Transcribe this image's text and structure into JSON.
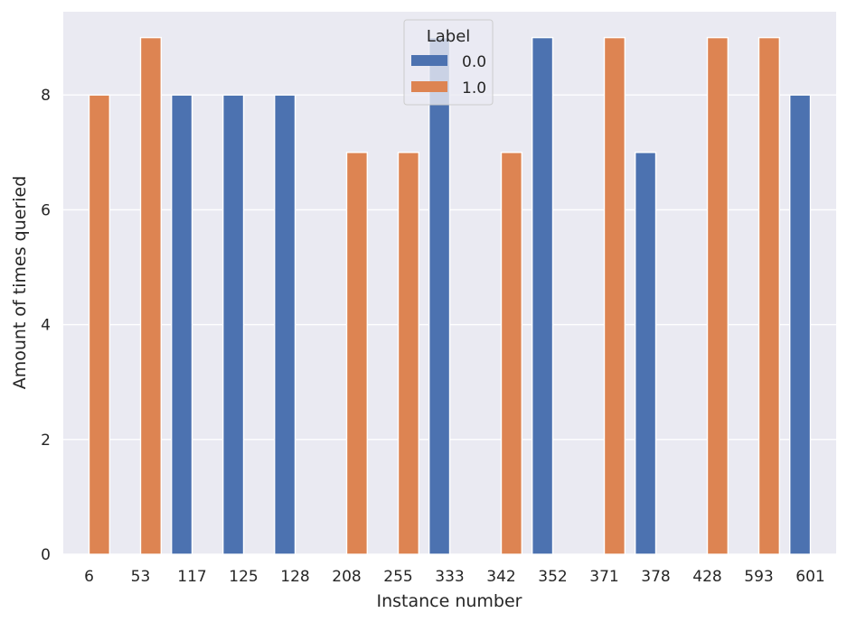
{
  "chart_data": {
    "type": "bar",
    "title": "",
    "xlabel": "Instance number",
    "ylabel": "Amount of times queried",
    "ylim": [
      0,
      9.45
    ],
    "yticks": [
      0,
      2,
      4,
      6,
      8
    ],
    "grid": true,
    "legend": {
      "title": "Label",
      "placement": "top-center"
    },
    "categories": [
      "6",
      "53",
      "117",
      "125",
      "128",
      "208",
      "255",
      "333",
      "342",
      "352",
      "371",
      "378",
      "428",
      "593",
      "601"
    ],
    "series": [
      {
        "name": "0.0",
        "color": "#4c72b0",
        "values": [
          null,
          null,
          8,
          8,
          8,
          null,
          null,
          9,
          null,
          9,
          null,
          7,
          null,
          null,
          8
        ]
      },
      {
        "name": "1.0",
        "color": "#dd8452",
        "values": [
          8,
          9,
          null,
          null,
          null,
          7,
          7,
          null,
          7,
          null,
          9,
          null,
          9,
          9,
          null
        ]
      }
    ]
  },
  "colors": {
    "plot_background": "#eaeaf2",
    "grid": "#ffffff",
    "text": "#262626"
  }
}
